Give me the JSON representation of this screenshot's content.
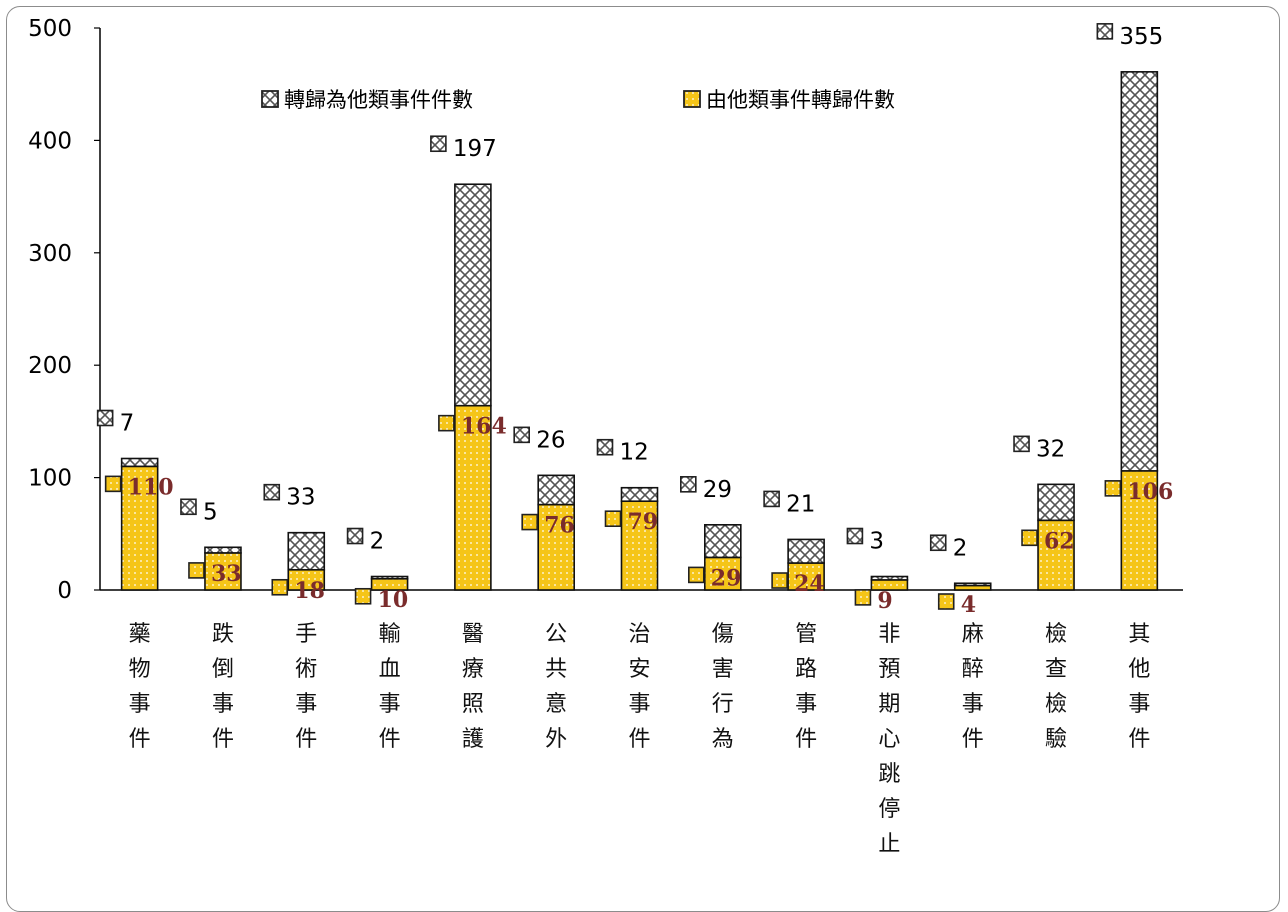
{
  "chart_data": {
    "type": "bar",
    "stacked": true,
    "ylim": [
      0,
      500
    ],
    "yticks": [
      "0",
      "100",
      "200",
      "300",
      "400",
      "500"
    ],
    "categories": [
      "藥物事件",
      "跌倒事件",
      "手術事件",
      "輸血事件",
      "醫療照護",
      "公共意外",
      "治安事件",
      "傷害行為",
      "管路事件",
      "非預期心跳停止",
      "麻醉事件",
      "檢查檢驗",
      "其他事件"
    ],
    "series": [
      {
        "name": "由他類事件轉歸件數",
        "color": "#f5c518",
        "values": [
          110,
          33,
          18,
          10,
          164,
          76,
          79,
          29,
          24,
          9,
          4,
          62,
          106
        ],
        "labels": [
          "110",
          "33",
          "18",
          "10",
          "164",
          "76",
          "79",
          "29",
          "24",
          "9",
          "4",
          "62",
          "106"
        ]
      },
      {
        "name": "轉歸為他類事件件數",
        "color": "#bfbfbf",
        "values": [
          7,
          5,
          33,
          2,
          197,
          26,
          12,
          29,
          21,
          3,
          2,
          32,
          355
        ],
        "labels": [
          "7",
          "5",
          "33",
          "2",
          "197",
          "26",
          "12",
          "29",
          "21",
          "3",
          "2",
          "32",
          "355"
        ]
      }
    ],
    "legend": {
      "position": "top"
    }
  }
}
